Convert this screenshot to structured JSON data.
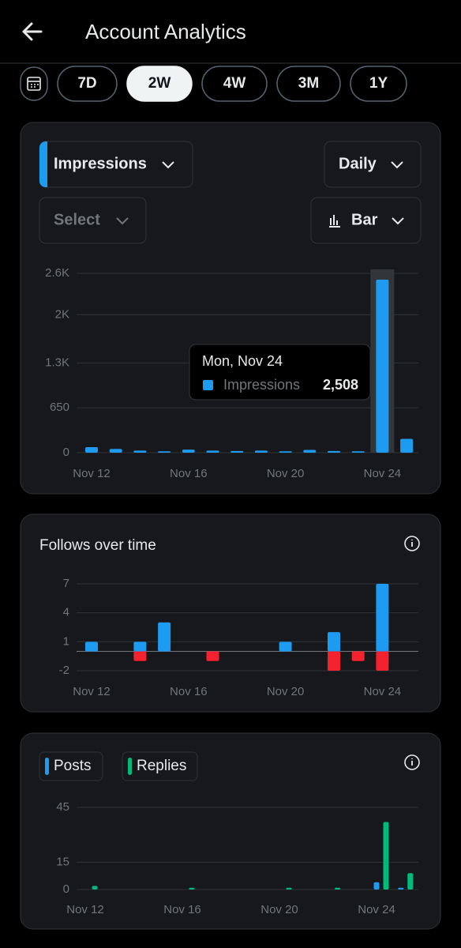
{
  "header": {
    "title": "Account Analytics"
  },
  "controls": {
    "ranges": [
      "7D",
      "2W",
      "4W",
      "3M",
      "1Y"
    ],
    "selected_range": "2W",
    "interval": "Daily",
    "compare": "Select",
    "style": "Bar"
  },
  "chart_data": [
    {
      "type": "bar",
      "categories": [
        "Nov 12",
        null,
        null,
        null,
        "Nov 16",
        null,
        null,
        null,
        "Nov 20",
        null,
        null,
        null,
        "Nov 24",
        null
      ],
      "series": [
        {
          "name": "Impressions",
          "color": "#1d9bf0",
          "values": [
            80,
            55,
            30,
            20,
            45,
            30,
            25,
            30,
            20,
            40,
            25,
            20,
            2508,
            200
          ]
        }
      ],
      "ylim": [
        0,
        2600
      ],
      "yticks": [
        0,
        650,
        {
          "value": 1300,
          "label": "1.3K"
        },
        {
          "value": 2000,
          "label": "2K"
        },
        {
          "value": 2600,
          "label": "2.6K"
        }
      ],
      "grid": true,
      "highlight_category": "Nov 24",
      "tooltip": {
        "title": "Mon, Nov 24",
        "value_label": "2,508"
      }
    },
    {
      "type": "bar",
      "title": "Follows over time",
      "categories": [
        "Nov 12",
        null,
        null,
        null,
        "Nov 16",
        null,
        null,
        null,
        "Nov 20",
        null,
        null,
        null,
        "Nov 24",
        null
      ],
      "series": [
        {
          "color": "#1d9bf0",
          "values": [
            1,
            0,
            1,
            3,
            0,
            0,
            0,
            0,
            1,
            0,
            2,
            0,
            7,
            0
          ]
        },
        {
          "color": "#f4212e",
          "values": [
            0,
            0,
            -1,
            0,
            0,
            -1,
            0,
            0,
            0,
            0,
            -2,
            -1,
            -2,
            0
          ]
        }
      ],
      "ylim": [
        -2,
        7
      ],
      "yticks": [
        -2,
        1,
        4,
        7
      ],
      "grid": true
    },
    {
      "type": "bar",
      "categories": [
        "Nov 12",
        null,
        null,
        null,
        "Nov 16",
        null,
        null,
        null,
        "Nov 20",
        null,
        null,
        null,
        "Nov 24",
        null
      ],
      "series": [
        {
          "name": "Posts",
          "color": "#1d9bf0",
          "values": [
            0,
            0,
            0,
            0,
            0,
            0,
            0,
            0,
            0,
            0,
            0,
            0,
            4,
            1
          ]
        },
        {
          "name": "Replies",
          "color": "#00ba7c",
          "values": [
            2,
            0,
            0,
            0,
            1,
            0,
            0,
            0,
            1,
            0,
            1,
            0,
            37,
            9
          ]
        }
      ],
      "ylim": [
        0,
        45
      ],
      "yticks": [
        0,
        15,
        45
      ],
      "grid": true
    }
  ]
}
